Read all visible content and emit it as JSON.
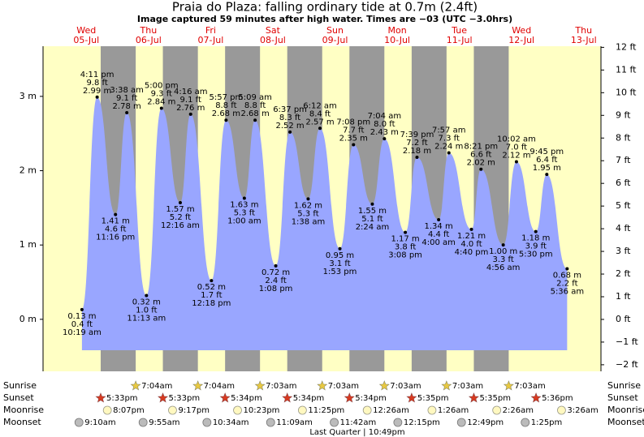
{
  "chart_data": {
    "type": "area",
    "title": "Praia do Plaza: falling  ordinary tide at 0.7m (2.4ft)",
    "subtitle": "Image captured 59 minutes after high water. Times are −03 (UTC −3.0hrs)",
    "color": "#99a6ff",
    "ylim": [
      -0.7,
      3.675
    ],
    "yticks": [
      {
        "value": 0,
        "label": "0 m"
      },
      {
        "value": 1,
        "label": "1 m"
      },
      {
        "value": 2,
        "label": "2 m"
      },
      {
        "value": 3,
        "label": "3 m"
      }
    ],
    "y2lim": [
      -2.29,
      12.05
    ],
    "y2ticks": [
      {
        "value": -2,
        "label": "−2 ft"
      },
      {
        "value": -1,
        "label": "−1 ft"
      },
      {
        "value": 0,
        "label": "0 ft"
      },
      {
        "value": 1,
        "label": "1 ft"
      },
      {
        "value": 2,
        "label": "2 ft"
      },
      {
        "value": 3,
        "label": "3 ft"
      },
      {
        "value": 4,
        "label": "4 ft"
      },
      {
        "value": 5,
        "label": "5 ft"
      },
      {
        "value": 6,
        "label": "6 ft"
      },
      {
        "value": 7,
        "label": "7 ft"
      },
      {
        "value": 8,
        "label": "8 ft"
      },
      {
        "value": 9,
        "label": "9 ft"
      },
      {
        "value": 10,
        "label": "10 ft"
      },
      {
        "value": 11,
        "label": "11 ft"
      },
      {
        "value": 12,
        "label": "12 ft"
      }
    ],
    "row_labels": {
      "sunrise": "Sunrise",
      "sunset": "Sunset",
      "moonrise": "Moonrise",
      "moonset": "Moonset"
    },
    "moon_phase": "Last Quarter | 10:49pm",
    "days": [
      {
        "name": "Wed",
        "date": "05-Jul",
        "sunset": "5:33pm",
        "moonrise": "8:07pm",
        "moonset": "9:10am",
        "tides": {
          "times": [
            "10:19 am",
            "4:11 pm",
            "11:16 pm"
          ],
          "values": [
            0.13,
            2.99,
            1.41
          ],
          "value_labels": [
            "0.13 m",
            "2.99 m",
            "1.41 m"
          ],
          "ft_labels": [
            "0.4 ft",
            "9.8 ft",
            "4.6 ft"
          ]
        }
      },
      {
        "name": "Thu",
        "date": "06-Jul",
        "sunrise": "7:04am",
        "sunset": "5:33pm",
        "moonrise": "9:17pm",
        "moonset": "9:55am",
        "tides": {
          "times": [
            "3:38 am",
            "11:13 am",
            "5:00 pm"
          ],
          "values": [
            2.78,
            0.32,
            2.84
          ],
          "value_labels": [
            "2.78 m",
            "0.32 m",
            "2.84 m"
          ],
          "ft_labels": [
            "9.1 ft",
            "1.0 ft",
            "9.3 ft"
          ]
        }
      },
      {
        "name": "Fri",
        "date": "07-Jul",
        "sunrise": "7:04am",
        "sunset": "5:34pm",
        "moonrise": "10:23pm",
        "moonset": "10:34am",
        "tides": {
          "times": [
            "12:16 am",
            "4:16 am",
            "12:18 pm",
            "5:57 pm"
          ],
          "values": [
            1.57,
            2.76,
            0.52,
            2.68
          ],
          "value_labels": [
            "1.57 m",
            "2.76 m",
            "0.52 m",
            "2.68 m"
          ],
          "ft_labels": [
            "5.2 ft",
            "9.1 ft",
            "1.7 ft",
            "8.8 ft"
          ]
        }
      },
      {
        "name": "Sat",
        "date": "08-Jul",
        "sunrise": "7:03am",
        "sunset": "5:34pm",
        "moonrise": "11:25pm",
        "moonset": "11:09am",
        "tides": {
          "times": [
            "1:00 am",
            "5:09 am",
            "1:08 pm",
            "6:37 pm"
          ],
          "values": [
            1.63,
            2.68,
            0.72,
            2.52
          ],
          "value_labels": [
            "1.63 m",
            "2.68 m",
            "0.72 m",
            "2.52 m"
          ],
          "ft_labels": [
            "5.3 ft",
            "8.8 ft",
            "2.4 ft",
            "8.3 ft"
          ]
        }
      },
      {
        "name": "Sun",
        "date": "09-Jul",
        "sunrise": "7:03am",
        "sunset": "5:34pm",
        "moonset": "11:42am",
        "tides": {
          "times": [
            "1:38 am",
            "6:12 am",
            "1:53 pm",
            "7:08 pm"
          ],
          "values": [
            1.62,
            2.57,
            0.95,
            2.35
          ],
          "value_labels": [
            "1.62 m",
            "2.57 m",
            "0.95 m",
            "2.35 m"
          ],
          "ft_labels": [
            "5.3 ft",
            "8.4 ft",
            "3.1 ft",
            "7.7 ft"
          ]
        }
      },
      {
        "name": "Mon",
        "date": "10-Jul",
        "sunrise": "7:03am",
        "sunset": "5:35pm",
        "moonrise": "12:26am",
        "moonset": "12:15pm",
        "tides": {
          "times": [
            "2:24 am",
            "7:04 am",
            "3:08 pm",
            "7:39 pm"
          ],
          "values": [
            1.55,
            2.43,
            1.17,
            2.18
          ],
          "value_labels": [
            "1.55 m",
            "2.43 m",
            "1.17 m",
            "2.18 m"
          ],
          "ft_labels": [
            "5.1 ft",
            "8.0 ft",
            "3.8 ft",
            "7.2 ft"
          ]
        }
      },
      {
        "name": "Tue",
        "date": "11-Jul",
        "sunrise": "7:03am",
        "sunset": "5:35pm",
        "moonrise": "1:26am",
        "moonset": "12:49pm",
        "tides": {
          "times": [
            "4:00 am",
            "7:57 am",
            "4:40 pm",
            "8:21 pm"
          ],
          "values": [
            1.34,
            2.24,
            1.21,
            2.02
          ],
          "value_labels": [
            "1.34 m",
            "2.24 m",
            "1.21 m",
            "2.02 m"
          ],
          "ft_labels": [
            "4.4 ft",
            "7.3 ft",
            "4.0 ft",
            "6.6 ft"
          ]
        }
      },
      {
        "name": "Wed",
        "date": "12-Jul",
        "sunrise": "7:03am",
        "sunset": "5:36pm",
        "moonrise": "2:26am",
        "moonset": "1:25pm",
        "tides": {
          "times": [
            "4:56 am",
            "10:02 am",
            "5:30 pm",
            "9:45 pm"
          ],
          "values": [
            1.0,
            2.12,
            1.18,
            1.95
          ],
          "value_labels": [
            "1.00 m",
            "2.12 m",
            "1.18 m",
            "1.95 m"
          ],
          "ft_labels": [
            "3.3 ft",
            "7.0 ft",
            "3.9 ft",
            "6.4 ft"
          ]
        }
      },
      {
        "name": "Thu",
        "date": "13-Jul",
        "moonrise": "3:26am",
        "tides": {
          "times": [
            "5:36 am"
          ],
          "values": [
            0.68
          ],
          "value_labels": [
            "0.68 m"
          ],
          "ft_labels": [
            "2.2 ft"
          ]
        }
      }
    ]
  }
}
